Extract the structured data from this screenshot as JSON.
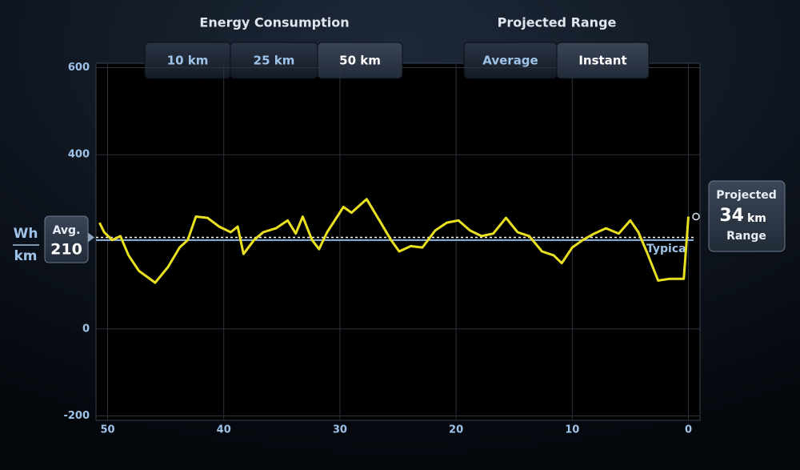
{
  "controls": {
    "consumption_title": "Energy Consumption",
    "consumption_options": [
      "10 km",
      "25 km",
      "50 km"
    ],
    "consumption_selected": 2,
    "range_title": "Projected Range",
    "range_options": [
      "Average",
      "Instant"
    ],
    "range_selected": 1
  },
  "chart_data": {
    "type": "line",
    "x": [
      50.7,
      50.3,
      49.6,
      48.9,
      48.2,
      47.3,
      45.9,
      44.8,
      43.8,
      43.1,
      42.4,
      41.4,
      40.4,
      39.4,
      38.8,
      38.3,
      37.4,
      36.6,
      35.5,
      34.5,
      33.8,
      33.2,
      32.4,
      31.8,
      31.1,
      29.7,
      29.0,
      27.7,
      26.6,
      25.6,
      24.9,
      23.9,
      22.9,
      21.8,
      20.8,
      19.8,
      18.8,
      17.8,
      16.8,
      15.7,
      14.7,
      13.7,
      12.6,
      11.6,
      10.9,
      10.0,
      9.1,
      8.1,
      7.1,
      6.0,
      5.0,
      4.3,
      3.6,
      2.6,
      1.6,
      0.4,
      0
    ],
    "series": [
      {
        "color": "#e8e020",
        "values": [
          244,
          222,
          204,
          213,
          169,
          133,
          106,
          142,
          187,
          204,
          258,
          255,
          235,
          222,
          235,
          172,
          204,
          222,
          231,
          249,
          219,
          258,
          204,
          183,
          222,
          280,
          267,
          298,
          249,
          204,
          178,
          190,
          187,
          226,
          244,
          249,
          226,
          213,
          219,
          255,
          222,
          213,
          178,
          169,
          151,
          187,
          204,
          219,
          231,
          219,
          249,
          222,
          178,
          111,
          115,
          115,
          258
        ]
      }
    ],
    "xlim": [
      51,
      -1
    ],
    "xticks": [
      50,
      40,
      30,
      20,
      10,
      0
    ],
    "ylim": [
      -210,
      610
    ],
    "yticks": [
      -200,
      0,
      400,
      600
    ],
    "grid": true,
    "y_unit_top": "Wh",
    "y_unit_bottom": "km",
    "avg_label": "Avg.",
    "avg_value": 210,
    "typical_label": "Typica",
    "typical_value": 204,
    "projected_label": "Projected",
    "projected_value": 34,
    "projected_unit": "km",
    "projected_caption": "Range"
  }
}
